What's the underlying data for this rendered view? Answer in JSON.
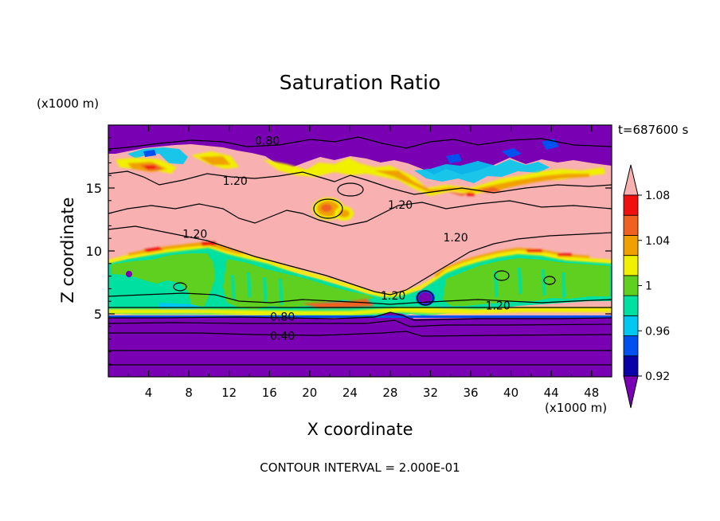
{
  "chart_data": {
    "type": "heatmap",
    "title": "Saturation Ratio",
    "xlabel": "X coordinate",
    "ylabel": "Z coordinate",
    "x_unit": "(x1000 m)",
    "y_unit": "(x1000 m)",
    "time_label": "t=687600 s",
    "footer": "CONTOUR INTERVAL = 2.000E-01",
    "xlim": [
      0,
      50
    ],
    "ylim": [
      0,
      20
    ],
    "x_ticks": [
      4,
      8,
      12,
      16,
      20,
      24,
      28,
      32,
      36,
      40,
      44,
      48
    ],
    "y_ticks": [
      5,
      10,
      15
    ],
    "colorbar": {
      "labels": [
        "1.08",
        "1.04",
        "1",
        "0.96",
        "0.92"
      ],
      "label_values": [
        1.08,
        1.04,
        1.0,
        0.96,
        0.92
      ],
      "levels": [
        0.9,
        0.92,
        0.94,
        0.96,
        0.98,
        1.0,
        1.02,
        1.04,
        1.06,
        1.08,
        1.1
      ],
      "colors": [
        "#7a00b4",
        "#0a00a8",
        "#0050f0",
        "#00c8f0",
        "#00e0a0",
        "#60d020",
        "#f0f000",
        "#f0a000",
        "#f06020",
        "#f01010",
        "#f8b0b0"
      ]
    },
    "contour_labels": [
      {
        "text": "0.80",
        "x": 15.8,
        "y": 18.7
      },
      {
        "text": "1.20",
        "x": 12.6,
        "y": 15.5
      },
      {
        "text": "1.20",
        "x": 29.0,
        "y": 13.6
      },
      {
        "text": "1.20",
        "x": 8.6,
        "y": 11.3
      },
      {
        "text": "1.20",
        "x": 34.5,
        "y": 11.0
      },
      {
        "text": "1.20",
        "x": 28.3,
        "y": 6.4
      },
      {
        "text": "1.20",
        "x": 38.7,
        "y": 5.6
      },
      {
        "text": "0.80",
        "x": 17.3,
        "y": 4.7
      },
      {
        "text": "0.40",
        "x": 17.3,
        "y": 3.2
      }
    ]
  }
}
